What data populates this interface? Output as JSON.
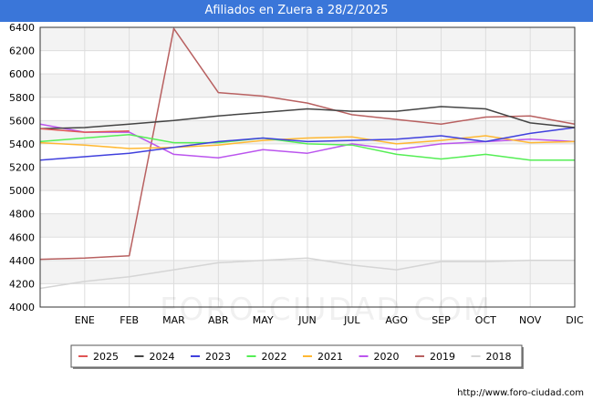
{
  "title": "Afiliados en Zuera a 28/2/2025",
  "source": "http://www.foro-ciudad.com",
  "watermark": "FORO-CIUDAD.COM",
  "chart_data": {
    "type": "line",
    "title": "Afiliados en Zuera a 28/2/2025",
    "x_labels": [
      "",
      "ENE",
      "FEB",
      "MAR",
      "ABR",
      "MAY",
      "JUN",
      "JUL",
      "AGO",
      "SEP",
      "OCT",
      "NOV",
      "DIC"
    ],
    "ylim": [
      4000,
      6400
    ],
    "yticks": [
      4000,
      4200,
      4400,
      4600,
      4800,
      5000,
      5200,
      5400,
      5600,
      5800,
      6000,
      6200,
      6400
    ],
    "grid": true,
    "legend_position": "bottom",
    "series": [
      {
        "name": "2025",
        "color": "#e05555",
        "values": [
          5530,
          5500,
          5510,
          null,
          null,
          null,
          null,
          null,
          null,
          null,
          null,
          null,
          null
        ]
      },
      {
        "name": "2024",
        "color": "#444444",
        "values": [
          5530,
          5540,
          5570,
          5600,
          5640,
          5670,
          5700,
          5680,
          5680,
          5720,
          5700,
          5580,
          5540
        ]
      },
      {
        "name": "2023",
        "color": "#4040dd",
        "values": [
          5260,
          5290,
          5320,
          5370,
          5420,
          5450,
          5420,
          5430,
          5440,
          5470,
          5420,
          5490,
          5540
        ]
      },
      {
        "name": "2022",
        "color": "#55ee55",
        "values": [
          5420,
          5450,
          5480,
          5410,
          5410,
          5450,
          5400,
          5390,
          5310,
          5270,
          5310,
          5260,
          5260
        ]
      },
      {
        "name": "2021",
        "color": "#ffb833",
        "values": [
          5410,
          5390,
          5360,
          5370,
          5390,
          5430,
          5450,
          5460,
          5400,
          5430,
          5470,
          5410,
          5420
        ]
      },
      {
        "name": "2020",
        "color": "#bb55ee",
        "values": [
          5570,
          5500,
          5500,
          5310,
          5280,
          5350,
          5320,
          5400,
          5350,
          5400,
          5420,
          5440,
          5420
        ]
      },
      {
        "name": "2019",
        "color": "#b86060",
        "values": [
          4410,
          4420,
          4440,
          6390,
          5840,
          5810,
          5750,
          5650,
          5610,
          5570,
          5630,
          5640,
          5570
        ]
      },
      {
        "name": "2018",
        "color": "#d5d5d5",
        "values": [
          4160,
          4220,
          4260,
          4320,
          4380,
          4400,
          4420,
          4360,
          4320,
          4390,
          4390,
          4400,
          4400
        ]
      }
    ]
  }
}
